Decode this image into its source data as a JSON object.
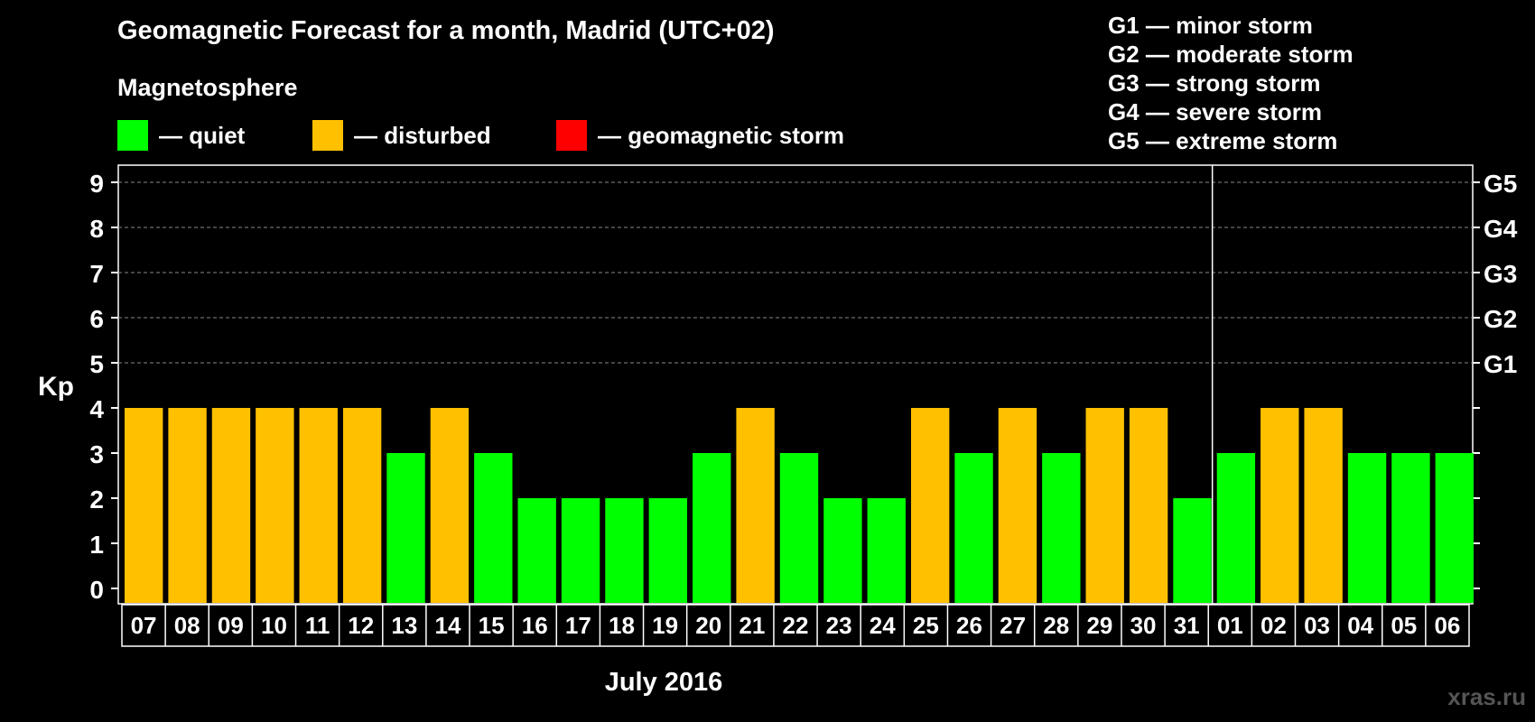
{
  "title": "Geomagnetic Forecast for a month, Madrid (UTC+02)",
  "subtitle": "Magnetosphere",
  "legend": [
    {
      "label": "— quiet",
      "color": "#00ff00"
    },
    {
      "label": "— disturbed",
      "color": "#ffc000"
    },
    {
      "label": "— geomagnetic storm",
      "color": "#ff0000"
    }
  ],
  "g_legend": [
    "G1 — minor storm",
    "G2 — moderate storm",
    "G3 — strong storm",
    "G4 — severe storm",
    "G5 — extreme storm"
  ],
  "watermark": "xras.ru",
  "chart_data": {
    "type": "bar",
    "ylabel": "Kp",
    "xlabel": "July 2016",
    "ylim": [
      0,
      9
    ],
    "y_ticks": [
      0,
      1,
      2,
      3,
      4,
      5,
      6,
      7,
      8,
      9
    ],
    "right_axis_labels": [
      {
        "value": 5,
        "label": "G1"
      },
      {
        "value": 6,
        "label": "G2"
      },
      {
        "value": 7,
        "label": "G3"
      },
      {
        "value": 8,
        "label": "G4"
      },
      {
        "value": 9,
        "label": "G5"
      }
    ],
    "grid": true,
    "categories": [
      "07",
      "08",
      "09",
      "10",
      "11",
      "12",
      "13",
      "14",
      "15",
      "16",
      "17",
      "18",
      "19",
      "20",
      "21",
      "22",
      "23",
      "24",
      "25",
      "26",
      "27",
      "28",
      "29",
      "30",
      "31",
      "01",
      "02",
      "03",
      "04",
      "05",
      "06"
    ],
    "values": [
      4,
      4,
      4,
      4,
      4,
      4,
      3,
      4,
      3,
      2,
      2,
      2,
      2,
      3,
      4,
      3,
      2,
      2,
      4,
      3,
      4,
      3,
      4,
      4,
      2,
      3,
      4,
      4,
      3,
      3,
      3
    ],
    "month_separator_after": "31",
    "colors": {
      "quiet": "#00ff00",
      "disturbed": "#ffc000",
      "storm": "#ff0000"
    }
  }
}
